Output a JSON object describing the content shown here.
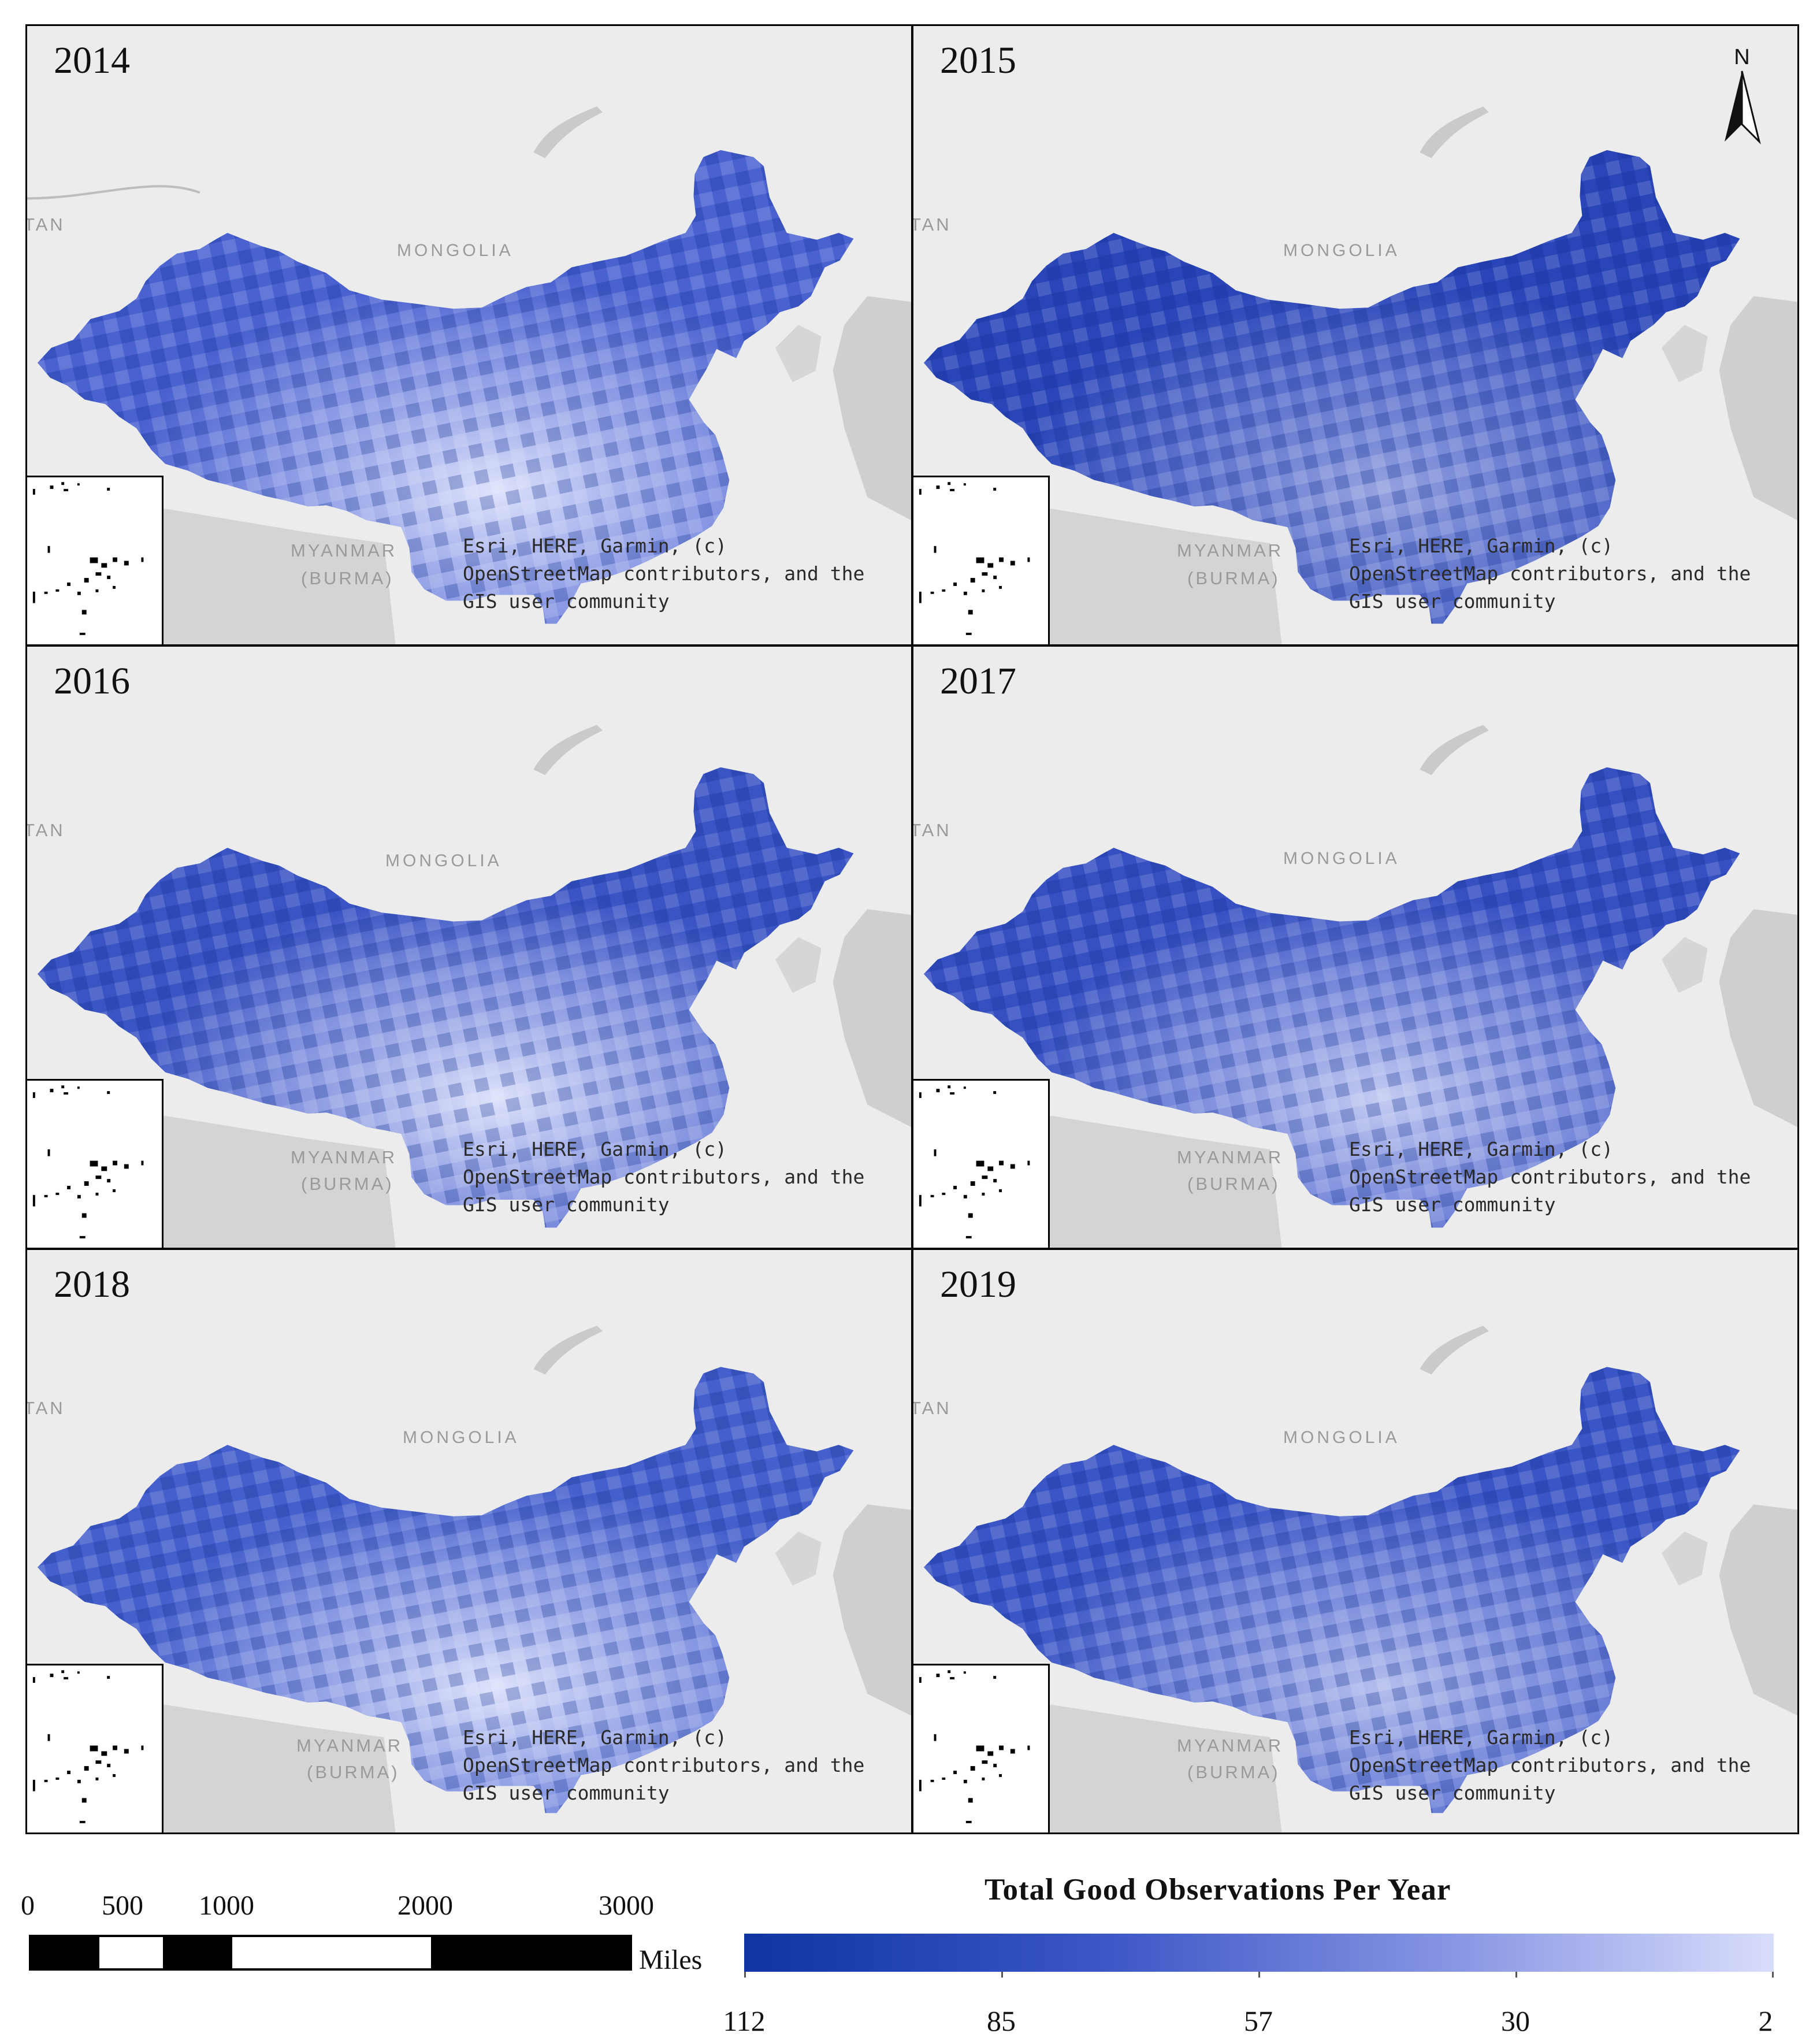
{
  "panels": [
    {
      "year": "2014",
      "shade": 0.35
    },
    {
      "year": "2015",
      "shade": 0.8
    },
    {
      "year": "2016",
      "shade": 0.55
    },
    {
      "year": "2017",
      "shade": 0.6
    },
    {
      "year": "2018",
      "shade": 0.45
    },
    {
      "year": "2019",
      "shade": 0.55
    }
  ],
  "basemap_labels": {
    "mongolia": "MONGOLIA",
    "myanmar": "MYANMAR",
    "burma": "(BURMA)",
    "edge": "TAN"
  },
  "attribution": {
    "line1": "Esri, HERE, Garmin, (c)",
    "line2": "OpenStreetMap contributors, and the",
    "line3": "GIS user community"
  },
  "north_arrow": {
    "label": "N"
  },
  "scale_bar": {
    "ticks": [
      "0",
      "500",
      "1000",
      "2000",
      "3000"
    ],
    "unit": "Miles"
  },
  "legend": {
    "title": "Total Good Observations Per Year",
    "ticks": [
      "112",
      "85",
      "57",
      "30",
      "2"
    ],
    "colors": {
      "high": "#0f35a3",
      "low": "#d9ddfb"
    }
  }
}
